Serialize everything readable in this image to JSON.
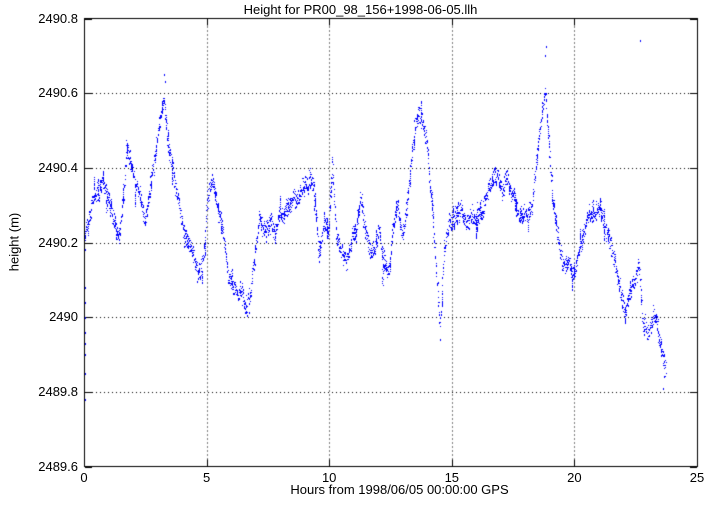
{
  "chart_data": {
    "type": "scatter",
    "title": "Height for PR00_98_156+1998-06-05.llh",
    "xlabel": "Hours from 1998/06/05 00:00:00 GPS",
    "ylabel": "height (m)",
    "xlim": [
      0,
      25
    ],
    "ylim": [
      2489.6,
      2490.8
    ],
    "xticks": [
      {
        "v": 0,
        "label": "0"
      },
      {
        "v": 5,
        "label": "5"
      },
      {
        "v": 10,
        "label": "10"
      },
      {
        "v": 15,
        "label": "15"
      },
      {
        "v": 20,
        "label": "20"
      },
      {
        "v": 25,
        "label": "25"
      }
    ],
    "yticks": [
      {
        "v": 2489.6,
        "label": "2489.6"
      },
      {
        "v": 2489.8,
        "label": "2489.8"
      },
      {
        "v": 2490.0,
        "label": "2490"
      },
      {
        "v": 2490.2,
        "label": "2490.2"
      },
      {
        "v": 2490.4,
        "label": "2490.4"
      },
      {
        "v": 2490.6,
        "label": "2490.6"
      },
      {
        "v": 2490.8,
        "label": "2490.8"
      }
    ],
    "grid": "dotted",
    "legend": "none",
    "background": "#ffffff",
    "frame_color": "#000000",
    "point_color": "#0000ff",
    "samples_per_hour": 125,
    "x_end": 23.75,
    "noise_sd_m": 0.012,
    "series": [
      {
        "name": "height",
        "trend_x": [
          0.0,
          0.1,
          0.3,
          0.5,
          0.75,
          0.9,
          1.1,
          1.3,
          1.45,
          1.6,
          1.75,
          1.9,
          2.1,
          2.3,
          2.5,
          2.7,
          2.9,
          3.1,
          3.3,
          3.5,
          3.7,
          3.9,
          4.1,
          4.3,
          4.5,
          4.7,
          4.9,
          5.05,
          5.2,
          5.4,
          5.6,
          5.8,
          6.0,
          6.2,
          6.4,
          6.6,
          6.8,
          7.0,
          7.15,
          7.3,
          7.5,
          7.7,
          7.9,
          8.1,
          8.3,
          8.5,
          8.7,
          8.9,
          9.1,
          9.3,
          9.45,
          9.6,
          9.8,
          10.0,
          10.15,
          10.3,
          10.5,
          10.7,
          10.9,
          11.1,
          11.3,
          11.5,
          11.7,
          11.9,
          12.05,
          12.2,
          12.4,
          12.6,
          12.8,
          13.0,
          13.2,
          13.4,
          13.6,
          13.8,
          14.0,
          14.2,
          14.4,
          14.55,
          14.7,
          14.9,
          15.1,
          15.3,
          15.5,
          15.7,
          15.9,
          16.1,
          16.3,
          16.5,
          16.7,
          16.9,
          17.1,
          17.3,
          17.5,
          17.7,
          17.9,
          18.1,
          18.3,
          18.5,
          18.7,
          18.85,
          19.0,
          19.15,
          19.3,
          19.5,
          19.7,
          19.9,
          20.1,
          20.3,
          20.5,
          20.7,
          20.9,
          21.1,
          21.3,
          21.5,
          21.7,
          21.9,
          22.1,
          22.3,
          22.5,
          22.65,
          22.8,
          23.0,
          23.2,
          23.4,
          23.55,
          23.7
        ],
        "trend_y": [
          2490.18,
          2490.24,
          2490.3,
          2490.33,
          2490.37,
          2490.34,
          2490.28,
          2490.24,
          2490.22,
          2490.3,
          2490.46,
          2490.4,
          2490.36,
          2490.3,
          2490.28,
          2490.33,
          2490.42,
          2490.5,
          2490.56,
          2490.42,
          2490.35,
          2490.28,
          2490.22,
          2490.2,
          2490.15,
          2490.13,
          2490.18,
          2490.33,
          2490.38,
          2490.32,
          2490.26,
          2490.15,
          2490.1,
          2490.07,
          2490.1,
          2490.05,
          2490.08,
          2490.2,
          2490.29,
          2490.25,
          2490.24,
          2490.25,
          2490.26,
          2490.28,
          2490.31,
          2490.33,
          2490.34,
          2490.36,
          2490.38,
          2490.38,
          2490.3,
          2490.2,
          2490.24,
          2490.26,
          2490.4,
          2490.25,
          2490.18,
          2490.15,
          2490.18,
          2490.2,
          2490.3,
          2490.2,
          2490.15,
          2490.18,
          2490.26,
          2490.15,
          2490.12,
          2490.25,
          2490.3,
          2490.22,
          2490.3,
          2490.45,
          2490.5,
          2490.52,
          2490.45,
          2490.3,
          2490.1,
          2489.97,
          2490.15,
          2490.25,
          2490.26,
          2490.28,
          2490.24,
          2490.25,
          2490.26,
          2490.28,
          2490.3,
          2490.33,
          2490.36,
          2490.38,
          2490.33,
          2490.36,
          2490.33,
          2490.3,
          2490.28,
          2490.3,
          2490.33,
          2490.45,
          2490.55,
          2490.58,
          2490.45,
          2490.3,
          2490.2,
          2490.15,
          2490.14,
          2490.12,
          2490.15,
          2490.2,
          2490.25,
          2490.28,
          2490.3,
          2490.3,
          2490.25,
          2490.18,
          2490.12,
          2490.06,
          2490.03,
          2490.08,
          2490.12,
          2490.15,
          2490.0,
          2489.97,
          2490.02,
          2490.0,
          2489.93,
          2489.87
        ]
      }
    ],
    "outliers": [
      [
        0.02,
        2489.66
      ],
      [
        0.03,
        2489.69
      ],
      [
        0.02,
        2489.71
      ],
      [
        0.04,
        2489.74
      ],
      [
        0.03,
        2489.76
      ],
      [
        0.05,
        2489.78
      ],
      [
        0.04,
        2489.83
      ],
      [
        0.05,
        2489.85
      ],
      [
        0.03,
        2489.87
      ],
      [
        0.06,
        2489.9
      ],
      [
        0.05,
        2489.93
      ],
      [
        0.06,
        2489.96
      ],
      [
        0.07,
        2490.0
      ],
      [
        0.06,
        2490.04
      ],
      [
        0.08,
        2490.08
      ],
      [
        3.3,
        2490.65
      ],
      [
        3.32,
        2490.63
      ],
      [
        18.84,
        2490.7
      ],
      [
        18.86,
        2490.725
      ],
      [
        22.7,
        2490.74
      ],
      [
        14.52,
        2489.94
      ],
      [
        23.65,
        2489.81
      ],
      [
        23.68,
        2489.84
      ]
    ]
  }
}
